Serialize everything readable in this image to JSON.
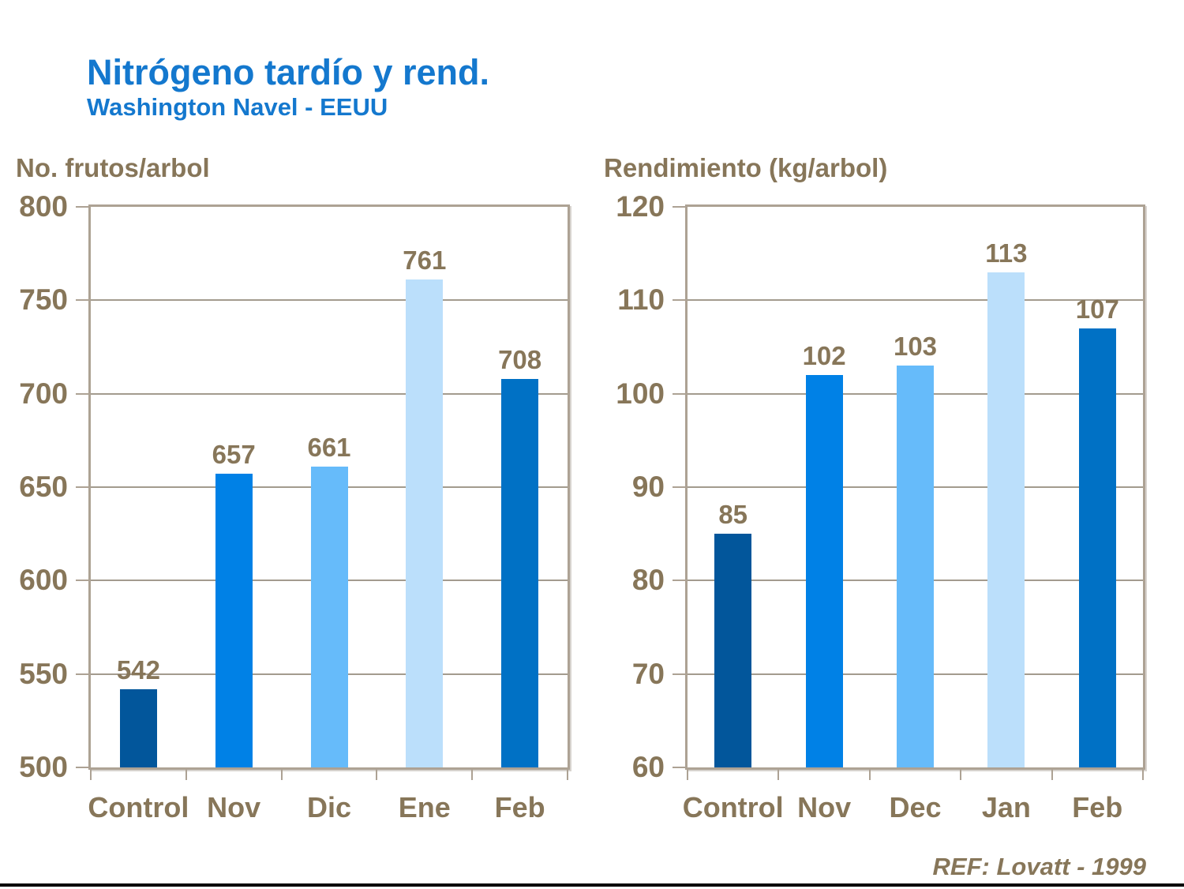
{
  "slide": {
    "title": "Nitrógeno tardío y rend.",
    "subtitle": "Washington Navel - EEUU",
    "reference": "REF: Lovatt - 1999"
  },
  "colors": {
    "title_blue": "#1478CE",
    "label_brown": "#877659",
    "plot_border_tan": "#ADA294",
    "gridline_gray": "#A39B8E",
    "bar_control": "#02569B",
    "bar_nov": "#0081E6",
    "bar_dic": "#66BBFA",
    "bar_ene": "#BBDFFB",
    "bar_feb": "#0071C5"
  },
  "chart_data": [
    {
      "type": "bar",
      "title": "No. frutos/arbol",
      "categories": [
        "Control",
        "Nov",
        "Dic",
        "Ene",
        "Feb"
      ],
      "values": [
        542,
        657,
        661,
        761,
        708
      ],
      "bar_colors": [
        "#02569B",
        "#0081E6",
        "#66BBFA",
        "#BBDFFB",
        "#0071C5"
      ],
      "ylim": [
        500,
        800
      ],
      "ytick_step": 50,
      "yticks": [
        500,
        550,
        600,
        650,
        700,
        750,
        800
      ],
      "grid": true,
      "legend": "none",
      "xlabel": "",
      "ylabel": "No. frutos/arbol"
    },
    {
      "type": "bar",
      "title": "Rendimiento (kg/arbol)",
      "categories": [
        "Control",
        "Nov",
        "Dec",
        "Jan",
        "Feb"
      ],
      "values": [
        85,
        102,
        103,
        113,
        107
      ],
      "bar_colors": [
        "#02569B",
        "#0081E6",
        "#66BBFA",
        "#BBDFFB",
        "#0071C5"
      ],
      "ylim": [
        60,
        120
      ],
      "ytick_step": 10,
      "yticks": [
        60,
        70,
        80,
        90,
        100,
        110,
        120
      ],
      "grid": true,
      "legend": "none",
      "xlabel": "",
      "ylabel": "Rendimiento (kg/arbol)"
    }
  ]
}
